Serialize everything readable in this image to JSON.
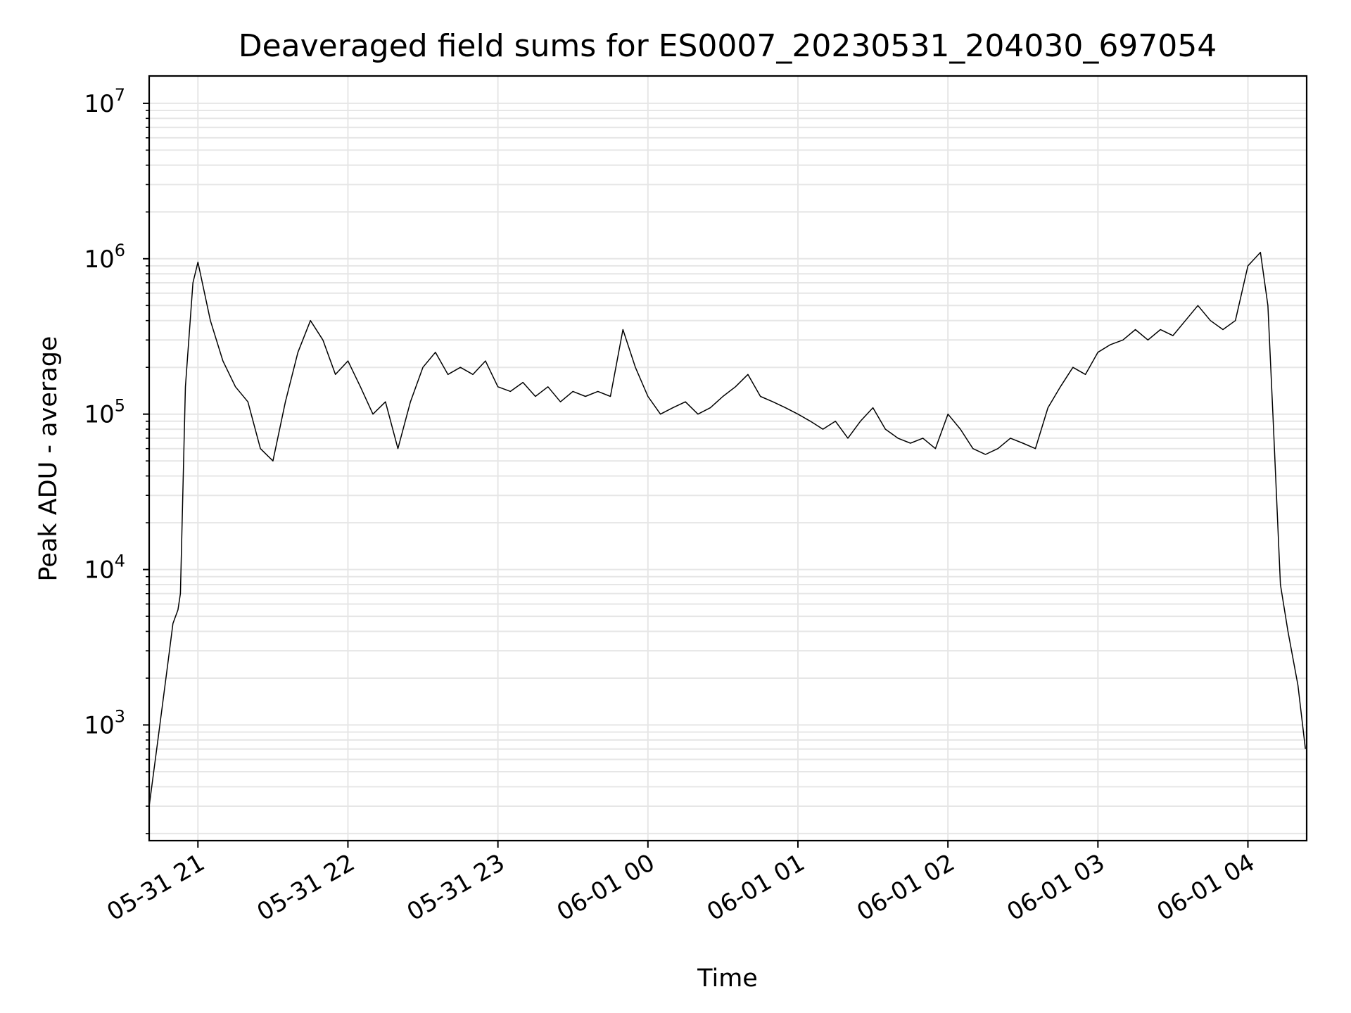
{
  "chart_data": {
    "type": "line",
    "title": "Deaveraged field sums for ES0007_20230531_204030_697054",
    "xlabel": "Time",
    "ylabel": "Peak ADU - average",
    "yscale": "log",
    "ylim": [
      180,
      15000000
    ],
    "xlim": [
      "2023-05-31 20:40:30",
      "2023-06-01 04:23:30"
    ],
    "y_ticks": [
      {
        "base": "10",
        "exp": "3",
        "value": 1000
      },
      {
        "base": "10",
        "exp": "4",
        "value": 10000
      },
      {
        "base": "10",
        "exp": "5",
        "value": 100000
      },
      {
        "base": "10",
        "exp": "6",
        "value": 1000000
      },
      {
        "base": "10",
        "exp": "7",
        "value": 10000000
      }
    ],
    "x_ticks": [
      {
        "label": "05-31 21",
        "value": "2023-05-31 21:00"
      },
      {
        "label": "05-31 22",
        "value": "2023-05-31 22:00"
      },
      {
        "label": "05-31 23",
        "value": "2023-05-31 23:00"
      },
      {
        "label": "06-01 00",
        "value": "2023-06-01 00:00"
      },
      {
        "label": "06-01 01",
        "value": "2023-06-01 01:00"
      },
      {
        "label": "06-01 02",
        "value": "2023-06-01 02:00"
      },
      {
        "label": "06-01 03",
        "value": "2023-06-01 03:00"
      },
      {
        "label": "06-01 04",
        "value": "2023-06-01 04:00"
      }
    ],
    "grid": true,
    "line_color": "#000000",
    "grid_color": "#e6e6e6",
    "series": [
      {
        "x": [
          "2023-05-31 20:40:30",
          "2023-05-31 20:44",
          "2023-05-31 20:48",
          "2023-05-31 20:50",
          "2023-05-31 20:52",
          "2023-05-31 20:53",
          "2023-05-31 20:55",
          "2023-05-31 20:58",
          "2023-05-31 21:00",
          "2023-05-31 21:05",
          "2023-05-31 21:10",
          "2023-05-31 21:15",
          "2023-05-31 21:20",
          "2023-05-31 21:25",
          "2023-05-31 21:30",
          "2023-05-31 21:35",
          "2023-05-31 21:40",
          "2023-05-31 21:45",
          "2023-05-31 21:50",
          "2023-05-31 21:55",
          "2023-05-31 22:00",
          "2023-05-31 22:05",
          "2023-05-31 22:10",
          "2023-05-31 22:15",
          "2023-05-31 22:20",
          "2023-05-31 22:25",
          "2023-05-31 22:30",
          "2023-05-31 22:35",
          "2023-05-31 22:40",
          "2023-05-31 22:45",
          "2023-05-31 22:50",
          "2023-05-31 22:55",
          "2023-05-31 23:00",
          "2023-05-31 23:05",
          "2023-05-31 23:10",
          "2023-05-31 23:15",
          "2023-05-31 23:20",
          "2023-05-31 23:25",
          "2023-05-31 23:30",
          "2023-05-31 23:35",
          "2023-05-31 23:40",
          "2023-05-31 23:45",
          "2023-05-31 23:50",
          "2023-05-31 23:55",
          "2023-06-01 00:00",
          "2023-06-01 00:05",
          "2023-06-01 00:10",
          "2023-06-01 00:15",
          "2023-06-01 00:20",
          "2023-06-01 00:25",
          "2023-06-01 00:30",
          "2023-06-01 00:35",
          "2023-06-01 00:40",
          "2023-06-01 00:45",
          "2023-06-01 00:50",
          "2023-06-01 00:55",
          "2023-06-01 01:00",
          "2023-06-01 01:05",
          "2023-06-01 01:10",
          "2023-06-01 01:15",
          "2023-06-01 01:20",
          "2023-06-01 01:25",
          "2023-06-01 01:30",
          "2023-06-01 01:35",
          "2023-06-01 01:40",
          "2023-06-01 01:45",
          "2023-06-01 01:50",
          "2023-06-01 01:55",
          "2023-06-01 02:00",
          "2023-06-01 02:05",
          "2023-06-01 02:10",
          "2023-06-01 02:15",
          "2023-06-01 02:20",
          "2023-06-01 02:25",
          "2023-06-01 02:30",
          "2023-06-01 02:35",
          "2023-06-01 02:40",
          "2023-06-01 02:45",
          "2023-06-01 02:50",
          "2023-06-01 02:55",
          "2023-06-01 03:00",
          "2023-06-01 03:05",
          "2023-06-01 03:10",
          "2023-06-01 03:15",
          "2023-06-01 03:20",
          "2023-06-01 03:25",
          "2023-06-01 03:30",
          "2023-06-01 03:35",
          "2023-06-01 03:40",
          "2023-06-01 03:45",
          "2023-06-01 03:50",
          "2023-06-01 03:55",
          "2023-06-01 04:00",
          "2023-06-01 04:05",
          "2023-06-01 04:08",
          "2023-06-01 04:10",
          "2023-06-01 04:13",
          "2023-06-01 04:16",
          "2023-06-01 04:20",
          "2023-06-01 04:23"
        ],
        "y": [
          300,
          800,
          2500,
          4500,
          5500,
          7000,
          150000,
          700000,
          950000,
          400000,
          220000,
          150000,
          120000,
          60000,
          50000,
          120000,
          250000,
          400000,
          300000,
          180000,
          220000,
          150000,
          100000,
          120000,
          60000,
          120000,
          200000,
          250000,
          180000,
          200000,
          180000,
          220000,
          150000,
          140000,
          160000,
          130000,
          150000,
          120000,
          140000,
          130000,
          140000,
          130000,
          350000,
          200000,
          130000,
          100000,
          110000,
          120000,
          100000,
          110000,
          130000,
          150000,
          180000,
          130000,
          120000,
          110000,
          100000,
          90000,
          80000,
          90000,
          70000,
          90000,
          110000,
          80000,
          70000,
          65000,
          70000,
          60000,
          100000,
          80000,
          60000,
          55000,
          60000,
          70000,
          65000,
          60000,
          110000,
          150000,
          200000,
          180000,
          250000,
          280000,
          300000,
          350000,
          300000,
          350000,
          320000,
          400000,
          500000,
          400000,
          350000,
          400000,
          900000,
          1100000,
          500000,
          100000,
          8000,
          4000,
          1800,
          700
        ]
      }
    ]
  }
}
